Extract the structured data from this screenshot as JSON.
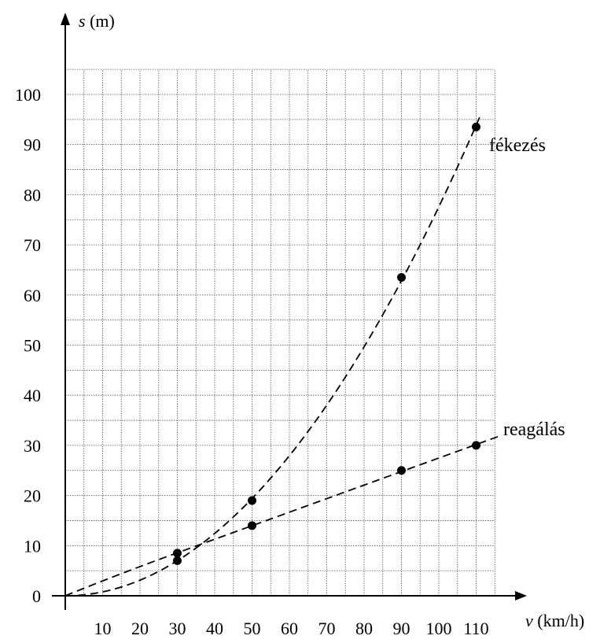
{
  "chart_data": {
    "type": "scatter",
    "title": "",
    "xlabel": {
      "symbol": "v",
      "unit": "(km/h)"
    },
    "ylabel": {
      "symbol": "s",
      "unit": "(m)"
    },
    "xlim": [
      0,
      120
    ],
    "ylim": [
      0,
      105
    ],
    "x_ticks": [
      10,
      20,
      30,
      40,
      50,
      60,
      70,
      80,
      90,
      100,
      110
    ],
    "y_ticks": [
      0,
      10,
      20,
      30,
      40,
      50,
      60,
      70,
      80,
      90,
      100
    ],
    "grid": true,
    "grid_minor_step": {
      "x": 5,
      "y": 5
    },
    "series": [
      {
        "name": "fékezés",
        "line_style": "dashed",
        "fit": "quadratic",
        "points": [
          {
            "x": 30,
            "y": 7
          },
          {
            "x": 50,
            "y": 19
          },
          {
            "x": 90,
            "y": 63.5
          },
          {
            "x": 110,
            "y": 93.5
          }
        ]
      },
      {
        "name": "reagálás",
        "line_style": "dashed",
        "fit": "linear",
        "points": [
          {
            "x": 30,
            "y": 8.5
          },
          {
            "x": 50,
            "y": 14
          },
          {
            "x": 90,
            "y": 25
          },
          {
            "x": 110,
            "y": 30
          }
        ]
      }
    ],
    "colors": {
      "ink": "#000000",
      "grid": "#555555",
      "background": "#ffffff"
    }
  }
}
